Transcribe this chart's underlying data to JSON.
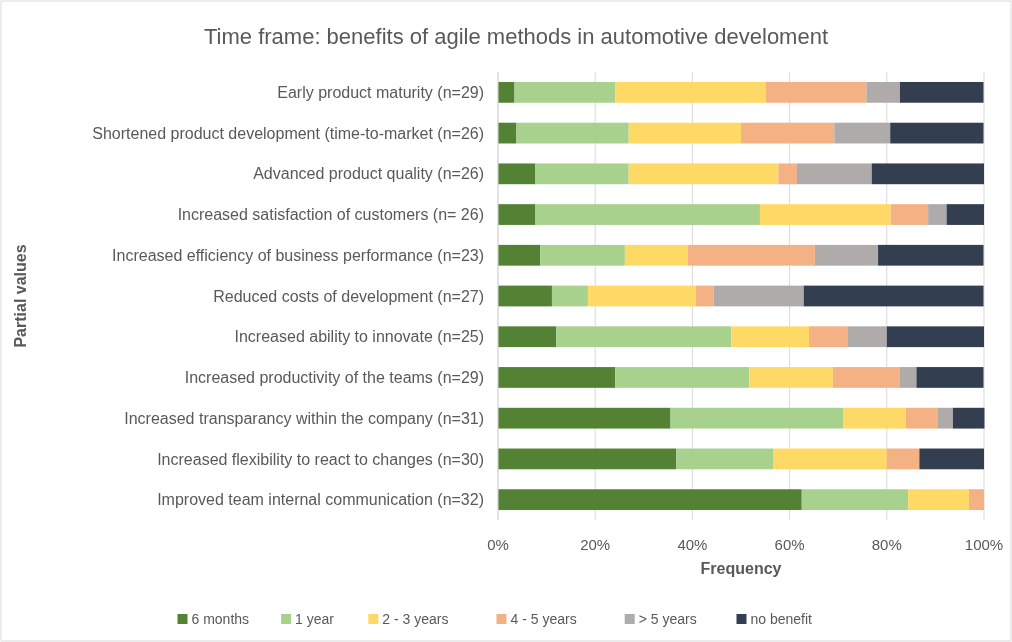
{
  "chart_data": {
    "type": "bar",
    "orientation": "horizontal",
    "stacked": true,
    "title": "Time frame: benefits of agile methods in automotive develoment",
    "xlabel": "Frequency",
    "ylabel": "Partial values",
    "categories": [
      "Early product maturity (n=29)",
      "Shortened product development (time-to-market (n=26)",
      "Advanced product quality (n=26)",
      "Increased satisfaction of customers (n= 26)",
      "Increased efficiency of business performance (n=23)",
      "Reduced costs of development (n=27)",
      "Increased ability to innovate (n=25)",
      "Increased productivity of the teams (n=29)",
      "Increased transparancy within the company (n=31)",
      "Increased flexibility to react to changes (n=30)",
      "Improved team internal communication (n=32)"
    ],
    "series": [
      {
        "name": "6 months",
        "color": "#548235",
        "values": [
          3.4,
          3.8,
          7.7,
          7.7,
          8.7,
          11.1,
          12,
          24.1,
          35.5,
          36.7,
          62.5
        ]
      },
      {
        "name": "1 year",
        "color": "#a9d18e",
        "values": [
          20.7,
          23.1,
          19.2,
          46.2,
          17.4,
          7.4,
          36,
          27.6,
          35.5,
          20,
          21.9
        ]
      },
      {
        "name": "2 - 3 years",
        "color": "#ffd966",
        "values": [
          31,
          23.1,
          30.8,
          26.9,
          13,
          22.2,
          16,
          17.2,
          12.9,
          23.3,
          12.5
        ]
      },
      {
        "name": "4 - 5 years",
        "color": "#f4b183",
        "values": [
          20.7,
          19.2,
          3.8,
          7.7,
          26.1,
          3.7,
          8,
          13.8,
          6.5,
          6.7,
          3.1
        ]
      },
      {
        "name": "> 5 years",
        "color": "#afabab",
        "values": [
          6.9,
          11.5,
          15.4,
          3.8,
          13,
          18.5,
          8,
          3.4,
          3.2,
          0,
          0
        ]
      },
      {
        "name": "no benefit",
        "color": "#333f50",
        "values": [
          17.2,
          19.2,
          23.1,
          7.7,
          21.7,
          37,
          20,
          13.8,
          6.5,
          13.3,
          0
        ]
      }
    ],
    "xlim": [
      0,
      100
    ],
    "xticks": [
      {
        "value": 0,
        "label": "0%"
      },
      {
        "value": 20,
        "label": "20%"
      },
      {
        "value": 40,
        "label": "40%"
      },
      {
        "value": 60,
        "label": "60%"
      },
      {
        "value": 80,
        "label": "80%"
      },
      {
        "value": 100,
        "label": "100%"
      }
    ],
    "grid": "x",
    "legend": "bottom"
  }
}
